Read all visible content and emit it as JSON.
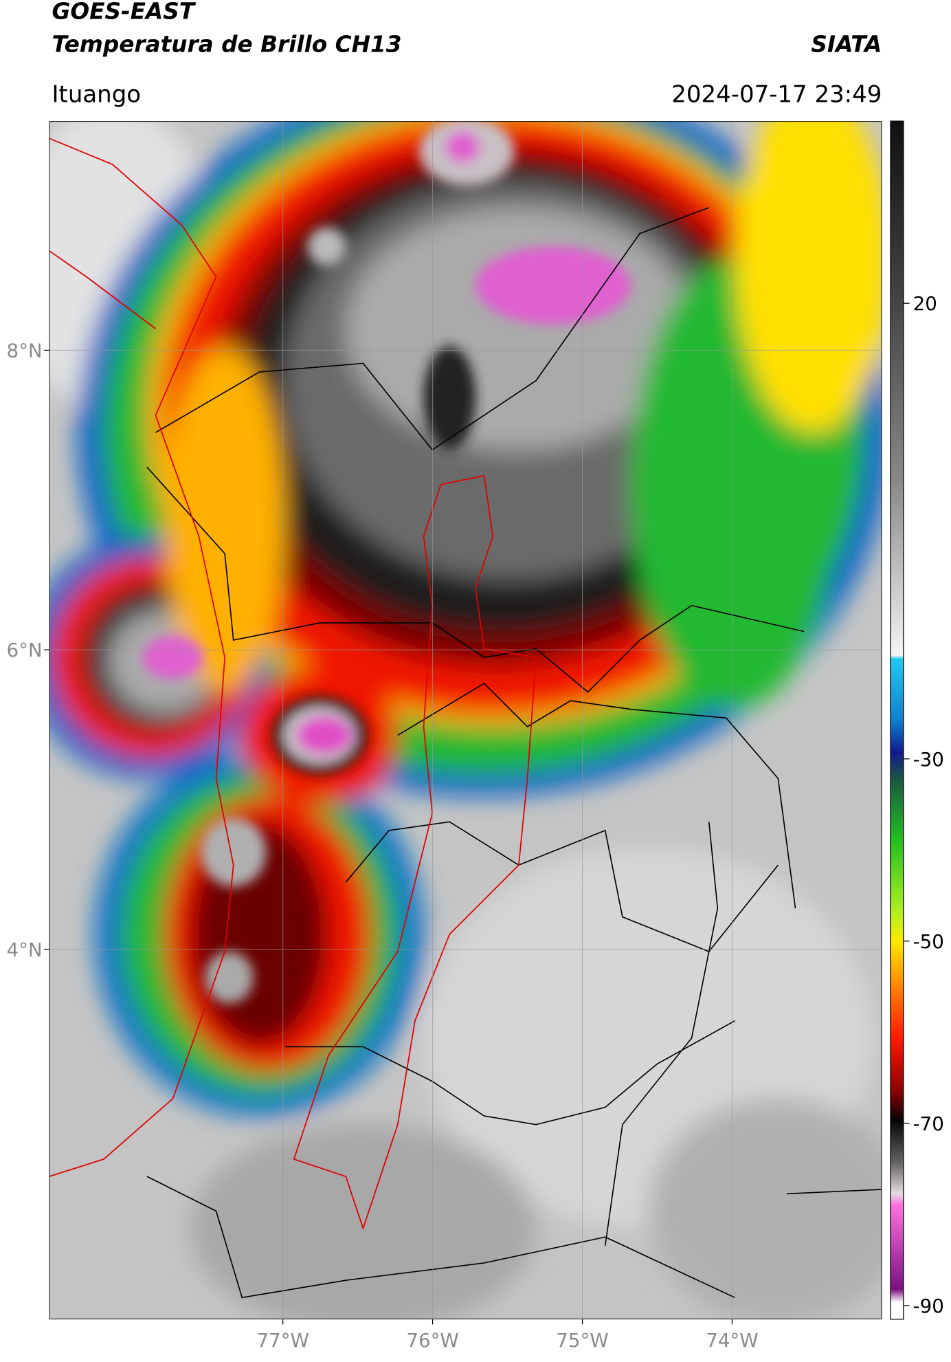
{
  "header": {
    "title": "GOES-EAST",
    "subtitle": "Temperatura de Brillo CH13",
    "brand": "SIATA",
    "location": "Ituango",
    "datetime": "2024-07-17 23:49"
  },
  "map": {
    "xlim": [
      -78.56,
      -73.0
    ],
    "ylim": [
      1.53,
      9.53
    ],
    "xticks": [
      {
        "value": -77,
        "label": "77°W"
      },
      {
        "value": -76,
        "label": "76°W"
      },
      {
        "value": -75,
        "label": "75°W"
      },
      {
        "value": -74,
        "label": "74°W"
      }
    ],
    "yticks": [
      {
        "value": 8,
        "label": "8°N"
      },
      {
        "value": 6,
        "label": "6°N"
      },
      {
        "value": 4,
        "label": "4°N"
      }
    ],
    "grid": true
  },
  "colorbar": {
    "clim": [
      -91.5,
      40
    ],
    "ticks": [
      20,
      -30,
      -50,
      -70,
      -90
    ]
  }
}
